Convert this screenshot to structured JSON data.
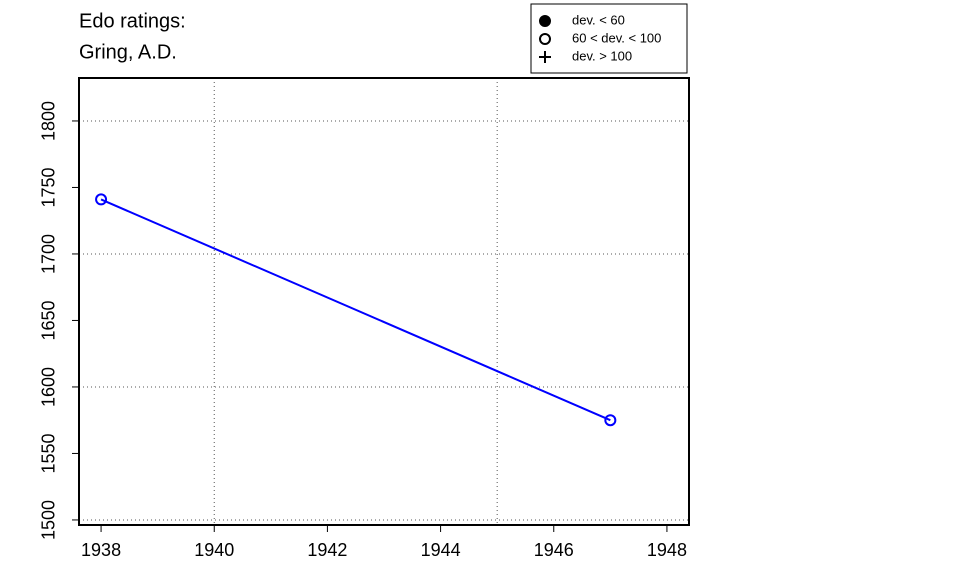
{
  "chart_data": {
    "type": "line",
    "title": [
      "Edo ratings:",
      "Gring, A.D."
    ],
    "x": [
      1938,
      1947
    ],
    "series": [
      {
        "color": "#0000ff",
        "values": [
          1741,
          1575
        ],
        "markers": [
          "open-circle",
          "open-circle"
        ]
      }
    ],
    "xlim": [
      1937.61,
      1948.39
    ],
    "ylim": [
      1496.2,
      1832.3
    ],
    "xticks": [
      1938,
      1940,
      1942,
      1944,
      1946,
      1948
    ],
    "yticks": [
      1500,
      1550,
      1600,
      1650,
      1700,
      1750,
      1800
    ],
    "xgrid": [
      1940,
      1945
    ],
    "ygrid": [
      1500,
      1600,
      1700,
      1800
    ],
    "legend": [
      {
        "label": "dev. < 60",
        "marker": "filled-circle"
      },
      {
        "label": "60 < dev. < 100",
        "marker": "open-circle"
      },
      {
        "label": "dev. > 100",
        "marker": "plus"
      }
    ]
  }
}
